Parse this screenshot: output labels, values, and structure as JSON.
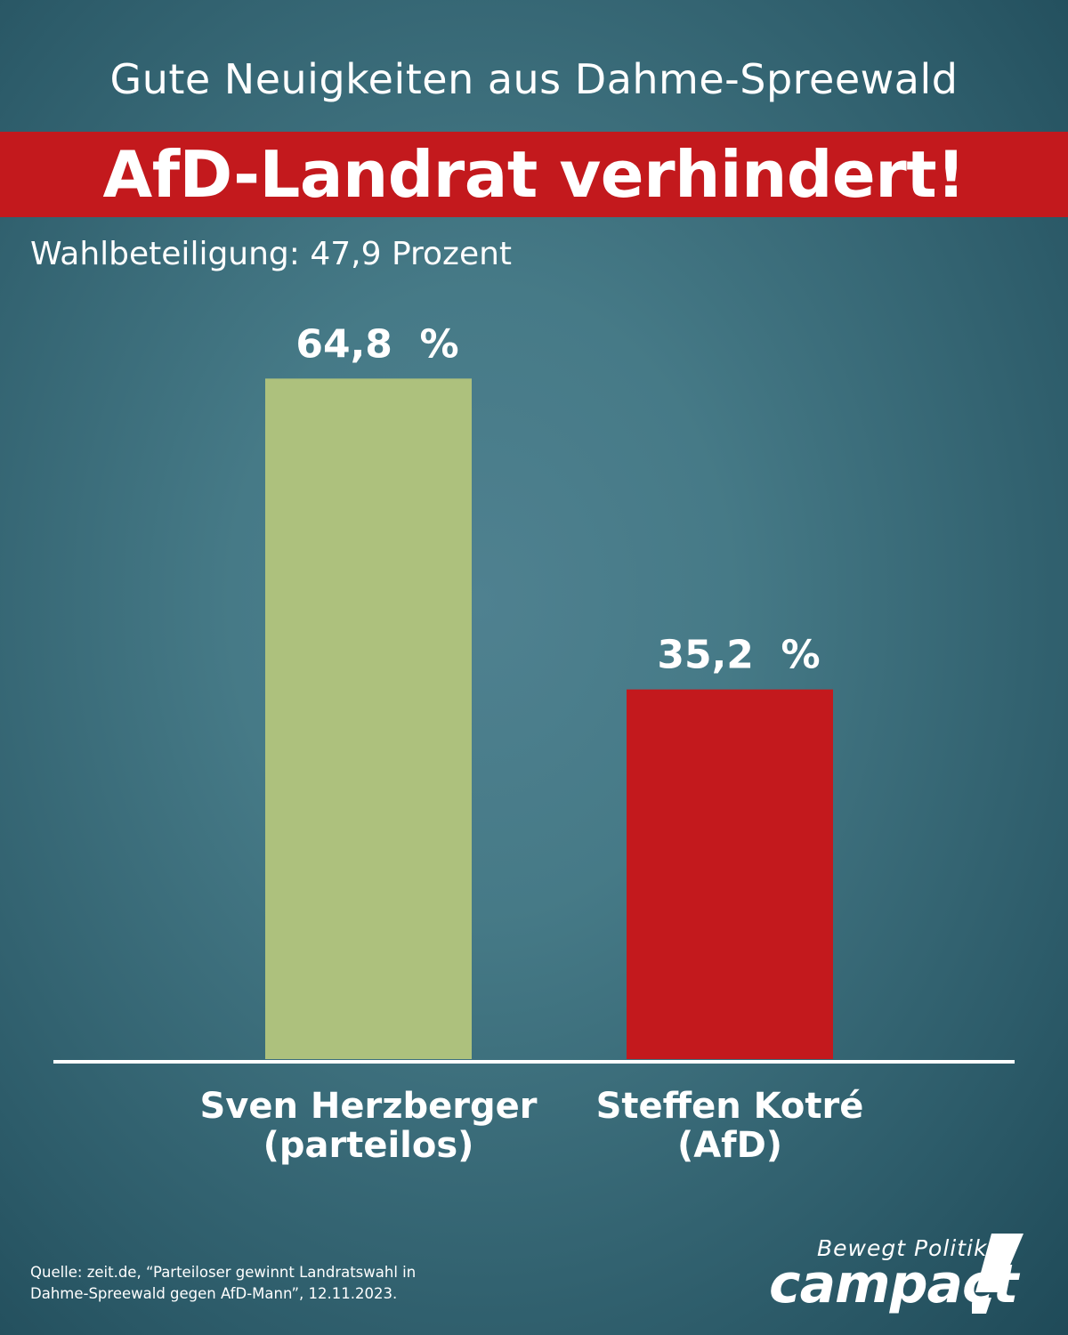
{
  "header": {
    "subtitle": "Gute Neuigkeiten aus Dahme-Spreewald",
    "title": "AfD-Landrat verhindert!"
  },
  "turnout_text": "Wahlbeteiligung: 47,9 Prozent",
  "chart_data": {
    "type": "bar",
    "categories": [
      [
        "Sven Herzberger",
        "(parteilos)"
      ],
      [
        "Steffen Kotré",
        "(AfD)"
      ]
    ],
    "values": [
      64.8,
      35.2
    ],
    "value_labels": [
      "64,8  %",
      "35,2  %"
    ],
    "colors": [
      "#adc17d",
      "#c3191d"
    ],
    "ylim": [
      0,
      100
    ],
    "grid": false,
    "legend": "none"
  },
  "source": {
    "line1": "Quelle: zeit.de, “Parteiloser gewinnt Landratswahl in",
    "line2": "Dahme-Spreewald gegen AfD-Mann”, 12.11.2023."
  },
  "brand": {
    "tagline": "Bewegt Politik",
    "name": "campact"
  }
}
